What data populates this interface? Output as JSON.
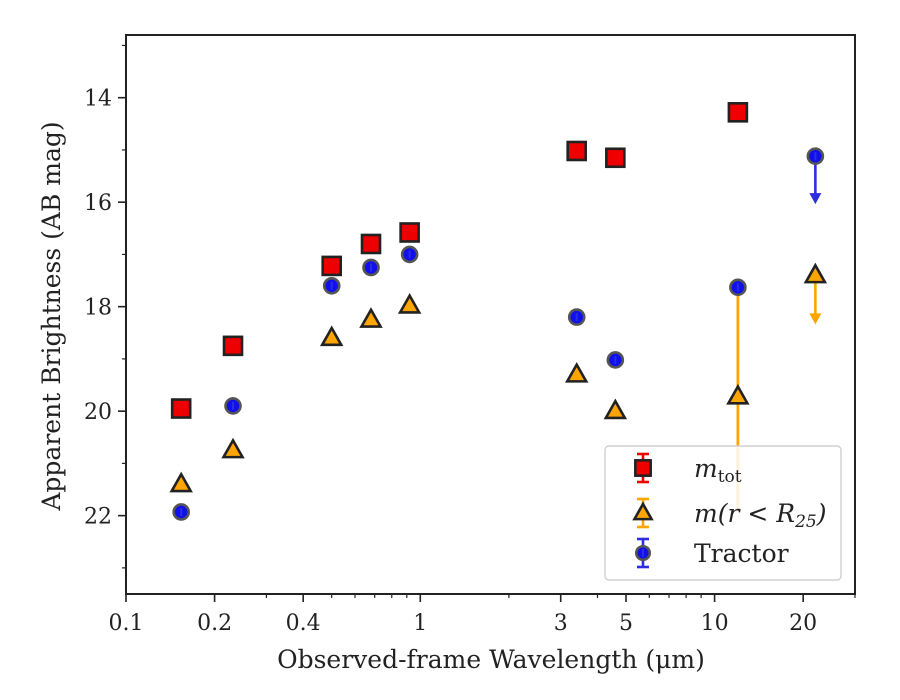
{
  "chart_data": {
    "type": "scatter",
    "xlabel": "Observed-frame Wavelength (μm)",
    "ylabel": "Apparent Brightness (AB mag)",
    "xscale": "log",
    "xlim": [
      0.1,
      30
    ],
    "ylim": [
      23.5,
      12.8
    ],
    "y_inverted": true,
    "xticks": [
      0.1,
      0.2,
      0.4,
      1,
      3,
      5,
      10,
      20
    ],
    "xtick_labels": [
      "0.1",
      "0.2",
      "0.4",
      "1",
      "3",
      "5",
      "10",
      "20"
    ],
    "yticks": [
      14,
      16,
      18,
      20,
      22
    ],
    "ytick_labels": [
      "14",
      "16",
      "18",
      "20",
      "22"
    ],
    "legend_position": "lower-right",
    "series": [
      {
        "name": "m_tot",
        "marker": "square",
        "color": "#ee0000",
        "errbar_color": "#ee0000",
        "points": [
          {
            "x": 0.154,
            "y": 19.95
          },
          {
            "x": 0.231,
            "y": 18.75
          },
          {
            "x": 0.5,
            "y": 17.22
          },
          {
            "x": 0.68,
            "y": 16.8
          },
          {
            "x": 0.92,
            "y": 16.58
          },
          {
            "x": 3.4,
            "y": 15.02
          },
          {
            "x": 4.6,
            "y": 15.15
          },
          {
            "x": 12.0,
            "y": 14.28
          }
        ]
      },
      {
        "name": "m(r < R25)",
        "marker": "triangle",
        "color": "#ffa500",
        "errbar_color": "#ffa500",
        "points": [
          {
            "x": 0.154,
            "y": 21.4
          },
          {
            "x": 0.231,
            "y": 20.75
          },
          {
            "x": 0.5,
            "y": 18.6
          },
          {
            "x": 0.68,
            "y": 18.25
          },
          {
            "x": 0.92,
            "y": 17.98
          },
          {
            "x": 3.4,
            "y": 19.3
          },
          {
            "x": 4.6,
            "y": 20.0
          },
          {
            "x": 12.0,
            "y": 19.72,
            "err_low": 17.7,
            "err_high": 21.9
          },
          {
            "x": 22.0,
            "y": 17.4,
            "upper_limit": true,
            "arrow_to": 18.3
          }
        ]
      },
      {
        "name": "Tractor",
        "marker": "circle",
        "color": "#1010ee",
        "errbar_color": "#2d2de0",
        "points": [
          {
            "x": 0.154,
            "y": 21.93
          },
          {
            "x": 0.231,
            "y": 19.9
          },
          {
            "x": 0.5,
            "y": 17.6
          },
          {
            "x": 0.68,
            "y": 17.25
          },
          {
            "x": 0.92,
            "y": 17.0
          },
          {
            "x": 3.4,
            "y": 18.2
          },
          {
            "x": 4.6,
            "y": 19.02
          },
          {
            "x": 12.0,
            "y": 17.63
          },
          {
            "x": 22.0,
            "y": 15.12,
            "upper_limit": true,
            "arrow_to": 16.0
          }
        ]
      }
    ]
  },
  "legend": {
    "entries": [
      {
        "main": "m",
        "sub": "tot",
        "tail": ""
      },
      {
        "main": "m(r < R",
        "sub": "25",
        "tail": ")"
      },
      {
        "main": "Tractor",
        "sub": "",
        "tail": ""
      }
    ]
  }
}
